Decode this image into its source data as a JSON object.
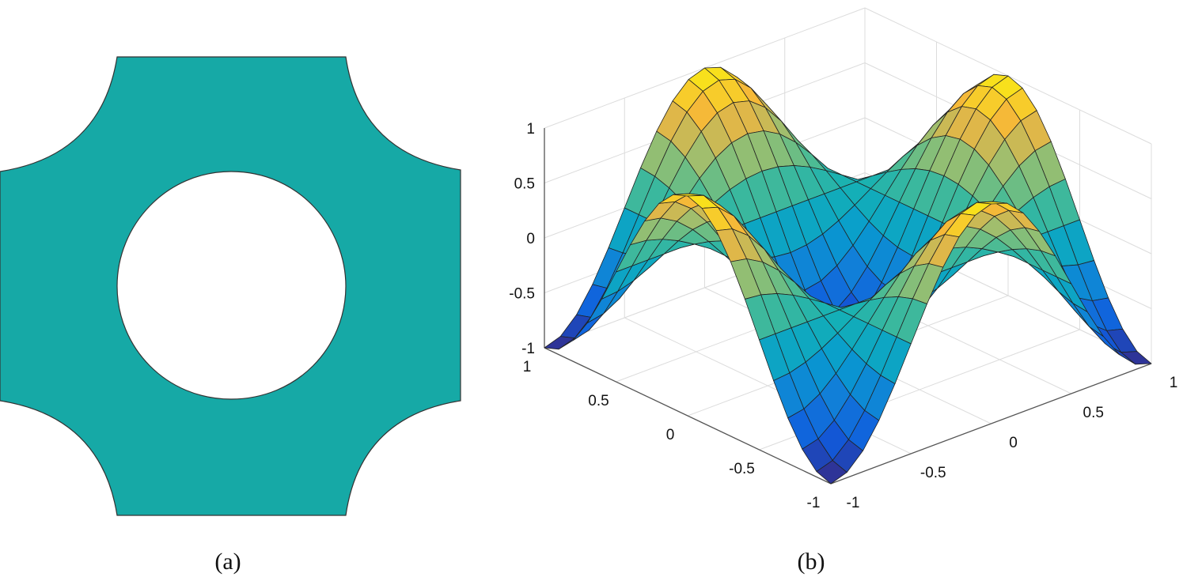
{
  "panels": {
    "a": {
      "caption": "(a)",
      "fill_color": "#16A9A6",
      "edge_color": "#333333"
    },
    "b": {
      "caption": "(b)"
    }
  },
  "chart_data": {
    "type": "surface",
    "colormap": "parula",
    "grid": true,
    "x_axis": {
      "ticks": [
        1,
        0.5,
        0,
        -0.5,
        -1
      ],
      "tick_labels": [
        "1",
        "0.5",
        "0",
        "-0.5",
        "-1"
      ],
      "range": [
        -1,
        1
      ]
    },
    "y_axis": {
      "ticks": [
        -1,
        -0.5,
        0,
        0.5,
        1
      ],
      "tick_labels": [
        "-1",
        "-0.5",
        "0",
        "0.5",
        "1"
      ],
      "range": [
        -1,
        1
      ]
    },
    "z_axis": {
      "ticks": [
        1,
        0.5,
        0,
        -0.5,
        -1
      ],
      "tick_labels": [
        "1",
        "0.5",
        "0",
        "-0.5",
        "-1"
      ],
      "range": [
        -1,
        1
      ]
    },
    "mesh_grid": {
      "x": [
        -1,
        1
      ],
      "y": [
        -1,
        1
      ],
      "step": 0.1
    },
    "edge_color": "#222222"
  }
}
